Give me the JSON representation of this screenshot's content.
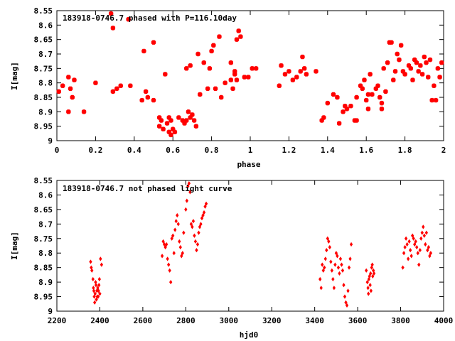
{
  "colors": {
    "points": "#ff0000",
    "axes": "#000000",
    "background": "#ffffff"
  },
  "chart_data": [
    {
      "type": "scatter",
      "title": "183918-0746.7 phased with P=116.10day",
      "xlabel": "phase",
      "ylabel": "I[mag]",
      "xlim": [
        0,
        2
      ],
      "ylim": [
        8.55,
        9
      ],
      "y_inverted": true,
      "grid": false,
      "xticks": [
        "0",
        "0.2",
        "0.4",
        "0.6",
        "0.8",
        "1",
        "1.2",
        "1.4",
        "1.6",
        "1.8",
        "2"
      ],
      "yticks": [
        "8.55",
        "8.6",
        "8.65",
        "8.7",
        "8.75",
        "8.8",
        "8.85",
        "8.9",
        "8.95",
        "9"
      ],
      "points": [
        [
          0.01,
          8.83
        ],
        [
          0.03,
          8.81
        ],
        [
          0.06,
          8.9
        ],
        [
          0.06,
          8.78
        ],
        [
          0.07,
          8.82
        ],
        [
          0.08,
          8.85
        ],
        [
          0.09,
          8.79
        ],
        [
          0.14,
          8.9
        ],
        [
          0.2,
          8.8
        ],
        [
          0.28,
          8.56
        ],
        [
          0.29,
          8.61
        ],
        [
          0.29,
          8.83
        ],
        [
          0.31,
          8.82
        ],
        [
          0.33,
          8.81
        ],
        [
          0.37,
          8.58
        ],
        [
          0.38,
          8.81
        ],
        [
          0.44,
          8.86
        ],
        [
          0.45,
          8.69
        ],
        [
          0.46,
          8.83
        ],
        [
          0.47,
          8.85
        ],
        [
          0.5,
          8.66
        ],
        [
          0.5,
          8.86
        ],
        [
          0.53,
          8.92
        ],
        [
          0.53,
          8.95
        ],
        [
          0.54,
          8.93
        ],
        [
          0.55,
          8.96
        ],
        [
          0.56,
          8.77
        ],
        [
          0.57,
          8.94
        ],
        [
          0.58,
          8.92
        ],
        [
          0.58,
          8.97
        ],
        [
          0.59,
          8.98
        ],
        [
          0.59,
          8.93
        ],
        [
          0.6,
          8.96
        ],
        [
          0.61,
          8.97
        ],
        [
          0.63,
          8.92
        ],
        [
          0.65,
          8.93
        ],
        [
          0.66,
          8.94
        ],
        [
          0.67,
          8.93
        ],
        [
          0.67,
          8.75
        ],
        [
          0.68,
          8.9
        ],
        [
          0.69,
          8.92
        ],
        [
          0.69,
          8.74
        ],
        [
          0.7,
          8.91
        ],
        [
          0.71,
          8.93
        ],
        [
          0.72,
          8.95
        ],
        [
          0.73,
          8.7
        ],
        [
          0.74,
          8.84
        ],
        [
          0.76,
          8.73
        ],
        [
          0.78,
          8.82
        ],
        [
          0.79,
          8.75
        ],
        [
          0.8,
          8.69
        ],
        [
          0.81,
          8.67
        ],
        [
          0.82,
          8.82
        ],
        [
          0.84,
          8.64
        ],
        [
          0.85,
          8.85
        ],
        [
          0.87,
          8.8
        ],
        [
          0.9,
          8.79
        ],
        [
          0.9,
          8.73
        ],
        [
          0.91,
          8.82
        ],
        [
          0.92,
          8.77
        ],
        [
          0.92,
          8.76
        ],
        [
          0.93,
          8.79
        ],
        [
          0.93,
          8.65
        ],
        [
          0.94,
          8.62
        ],
        [
          0.95,
          8.64
        ],
        [
          0.97,
          8.78
        ],
        [
          0.99,
          8.78
        ],
        [
          1.01,
          8.75
        ],
        [
          1.03,
          8.75
        ],
        [
          1.15,
          8.81
        ],
        [
          1.16,
          8.74
        ],
        [
          1.18,
          8.77
        ],
        [
          1.2,
          8.76
        ],
        [
          1.22,
          8.79
        ],
        [
          1.24,
          8.78
        ],
        [
          1.26,
          8.76
        ],
        [
          1.27,
          8.71
        ],
        [
          1.28,
          8.75
        ],
        [
          1.29,
          8.77
        ],
        [
          1.34,
          8.76
        ],
        [
          1.37,
          8.93
        ],
        [
          1.38,
          8.92
        ],
        [
          1.4,
          8.87
        ],
        [
          1.43,
          8.84
        ],
        [
          1.45,
          8.85
        ],
        [
          1.46,
          8.94
        ],
        [
          1.48,
          8.9
        ],
        [
          1.49,
          8.88
        ],
        [
          1.5,
          8.89
        ],
        [
          1.52,
          8.88
        ],
        [
          1.54,
          8.93
        ],
        [
          1.55,
          8.93
        ],
        [
          1.55,
          8.85
        ],
        [
          1.57,
          8.81
        ],
        [
          1.58,
          8.82
        ],
        [
          1.59,
          8.79
        ],
        [
          1.6,
          8.86
        ],
        [
          1.61,
          8.84
        ],
        [
          1.61,
          8.89
        ],
        [
          1.62,
          8.77
        ],
        [
          1.63,
          8.84
        ],
        [
          1.65,
          8.82
        ],
        [
          1.66,
          8.81
        ],
        [
          1.67,
          8.85
        ],
        [
          1.68,
          8.87
        ],
        [
          1.68,
          8.89
        ],
        [
          1.69,
          8.75
        ],
        [
          1.7,
          8.83
        ],
        [
          1.71,
          8.73
        ],
        [
          1.72,
          8.66
        ],
        [
          1.73,
          8.66
        ],
        [
          1.74,
          8.79
        ],
        [
          1.75,
          8.76
        ],
        [
          1.76,
          8.7
        ],
        [
          1.77,
          8.72
        ],
        [
          1.78,
          8.67
        ],
        [
          1.79,
          8.76
        ],
        [
          1.8,
          8.77
        ],
        [
          1.82,
          8.74
        ],
        [
          1.83,
          8.75
        ],
        [
          1.84,
          8.79
        ],
        [
          1.85,
          8.72
        ],
        [
          1.86,
          8.73
        ],
        [
          1.87,
          8.76
        ],
        [
          1.88,
          8.74
        ],
        [
          1.89,
          8.77
        ],
        [
          1.9,
          8.71
        ],
        [
          1.91,
          8.73
        ],
        [
          1.92,
          8.78
        ],
        [
          1.93,
          8.72
        ],
        [
          1.94,
          8.86
        ],
        [
          1.95,
          8.81
        ],
        [
          1.96,
          8.86
        ],
        [
          1.97,
          8.75
        ],
        [
          1.98,
          8.78
        ],
        [
          1.99,
          8.73
        ]
      ]
    },
    {
      "type": "scatter",
      "title": "183918-0746.7 not phased light curve",
      "xlabel": "hjd0",
      "ylabel": "I[mag]",
      "xlim": [
        2200,
        4000
      ],
      "ylim": [
        8.55,
        9
      ],
      "y_inverted": true,
      "grid": false,
      "xticks": [
        "2200",
        "2400",
        "2600",
        "2800",
        "3000",
        "3200",
        "3400",
        "3600",
        "3800",
        "4000"
      ],
      "yticks": [
        "8.55",
        "8.6",
        "8.65",
        "8.7",
        "8.75",
        "8.8",
        "8.85",
        "8.9",
        "8.95",
        "9"
      ],
      "points": [
        [
          2357,
          8.83
        ],
        [
          2360,
          8.85
        ],
        [
          2363,
          8.86
        ],
        [
          2368,
          8.89
        ],
        [
          2370,
          8.92
        ],
        [
          2372,
          8.93
        ],
        [
          2374,
          8.95
        ],
        [
          2376,
          8.97
        ],
        [
          2378,
          8.94
        ],
        [
          2380,
          8.9
        ],
        [
          2382,
          8.91
        ],
        [
          2384,
          8.96
        ],
        [
          2386,
          8.93
        ],
        [
          2388,
          8.95
        ],
        [
          2390,
          8.92
        ],
        [
          2392,
          8.95
        ],
        [
          2394,
          8.93
        ],
        [
          2396,
          8.91
        ],
        [
          2398,
          8.89
        ],
        [
          2400,
          8.94
        ],
        [
          2403,
          8.82
        ],
        [
          2408,
          8.84
        ],
        [
          2690,
          8.81
        ],
        [
          2695,
          8.76
        ],
        [
          2700,
          8.77
        ],
        [
          2705,
          8.78
        ],
        [
          2710,
          8.77
        ],
        [
          2715,
          8.82
        ],
        [
          2720,
          8.84
        ],
        [
          2725,
          8.86
        ],
        [
          2730,
          8.9
        ],
        [
          2735,
          8.75
        ],
        [
          2740,
          8.74
        ],
        [
          2745,
          8.8
        ],
        [
          2750,
          8.72
        ],
        [
          2755,
          8.69
        ],
        [
          2760,
          8.67
        ],
        [
          2765,
          8.7
        ],
        [
          2770,
          8.76
        ],
        [
          2775,
          8.78
        ],
        [
          2780,
          8.81
        ],
        [
          2785,
          8.8
        ],
        [
          2790,
          8.73
        ],
        [
          2800,
          8.65
        ],
        [
          2805,
          8.62
        ],
        [
          2810,
          8.57
        ],
        [
          2815,
          8.56
        ],
        [
          2820,
          8.59
        ],
        [
          2825,
          8.7
        ],
        [
          2830,
          8.71
        ],
        [
          2835,
          8.69
        ],
        [
          2840,
          8.74
        ],
        [
          2845,
          8.76
        ],
        [
          2850,
          8.79
        ],
        [
          2855,
          8.77
        ],
        [
          2860,
          8.73
        ],
        [
          2865,
          8.71
        ],
        [
          2870,
          8.7
        ],
        [
          2875,
          8.68
        ],
        [
          2880,
          8.67
        ],
        [
          2885,
          8.66
        ],
        [
          2890,
          8.64
        ],
        [
          2895,
          8.63
        ],
        [
          3425,
          8.89
        ],
        [
          3430,
          8.92
        ],
        [
          3435,
          8.84
        ],
        [
          3440,
          8.86
        ],
        [
          3445,
          8.85
        ],
        [
          3450,
          8.82
        ],
        [
          3455,
          8.79
        ],
        [
          3460,
          8.75
        ],
        [
          3465,
          8.76
        ],
        [
          3470,
          8.78
        ],
        [
          3475,
          8.83
        ],
        [
          3480,
          8.86
        ],
        [
          3485,
          8.89
        ],
        [
          3490,
          8.92
        ],
        [
          3495,
          8.84
        ],
        [
          3500,
          8.8
        ],
        [
          3505,
          8.81
        ],
        [
          3510,
          8.85
        ],
        [
          3515,
          8.87
        ],
        [
          3520,
          8.82
        ],
        [
          3525,
          8.84
        ],
        [
          3530,
          8.86
        ],
        [
          3535,
          8.91
        ],
        [
          3540,
          8.95
        ],
        [
          3545,
          8.97
        ],
        [
          3550,
          8.98
        ],
        [
          3555,
          8.93
        ],
        [
          3560,
          8.85
        ],
        [
          3565,
          8.82
        ],
        [
          3570,
          8.77
        ],
        [
          3640,
          8.86
        ],
        [
          3645,
          8.9
        ],
        [
          3648,
          8.92
        ],
        [
          3650,
          8.94
        ],
        [
          3652,
          8.89
        ],
        [
          3655,
          8.88
        ],
        [
          3658,
          8.91
        ],
        [
          3660,
          8.87
        ],
        [
          3662,
          8.93
        ],
        [
          3665,
          8.85
        ],
        [
          3668,
          8.84
        ],
        [
          3670,
          8.88
        ],
        [
          3673,
          8.86
        ],
        [
          3676,
          8.87
        ],
        [
          3810,
          8.85
        ],
        [
          3815,
          8.8
        ],
        [
          3820,
          8.78
        ],
        [
          3825,
          8.75
        ],
        [
          3830,
          8.77
        ],
        [
          3835,
          8.82
        ],
        [
          3840,
          8.76
        ],
        [
          3845,
          8.79
        ],
        [
          3850,
          8.81
        ],
        [
          3855,
          8.74
        ],
        [
          3860,
          8.75
        ],
        [
          3865,
          8.77
        ],
        [
          3870,
          8.76
        ],
        [
          3875,
          8.78
        ],
        [
          3880,
          8.8
        ],
        [
          3885,
          8.84
        ],
        [
          3890,
          8.79
        ],
        [
          3895,
          8.75
        ],
        [
          3900,
          8.73
        ],
        [
          3905,
          8.71
        ],
        [
          3910,
          8.74
        ],
        [
          3915,
          8.77
        ],
        [
          3920,
          8.73
        ],
        [
          3925,
          8.79
        ],
        [
          3930,
          8.78
        ],
        [
          3935,
          8.81
        ],
        [
          3940,
          8.8
        ]
      ]
    }
  ]
}
